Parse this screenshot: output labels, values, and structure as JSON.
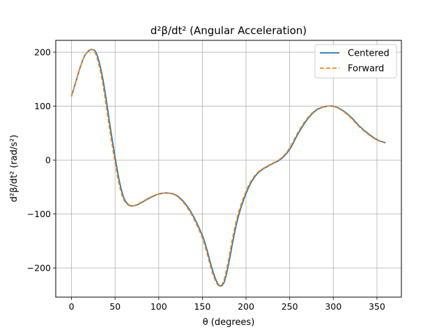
{
  "chart_data": {
    "type": "line",
    "title": "d²β/dt² (Angular Acceleration)",
    "xlabel": "θ (degrees)",
    "ylabel": "d²β/dt² (rad/s²)",
    "xlim": [
      -18,
      378
    ],
    "ylim": [
      -254,
      222
    ],
    "xticks": [
      0,
      50,
      100,
      150,
      200,
      250,
      300,
      350
    ],
    "yticks": [
      -200,
      -100,
      0,
      100,
      200
    ],
    "xtick_labels": [
      "0",
      "50",
      "100",
      "150",
      "200",
      "250",
      "300",
      "350"
    ],
    "ytick_labels": [
      "−200",
      "−100",
      "0",
      "100",
      "200"
    ],
    "grid": true,
    "legend_position": "top-right",
    "series": [
      {
        "name": "Centered",
        "color": "#1f77b4",
        "style": "solid",
        "x": [
          0,
          5,
          10,
          15,
          20,
          24,
          28,
          32,
          36,
          40,
          45,
          50,
          55,
          60,
          65,
          70,
          75,
          80,
          90,
          100,
          110,
          120,
          130,
          140,
          150,
          155,
          160,
          165,
          170,
          175,
          180,
          185,
          190,
          195,
          200,
          205,
          210,
          215,
          220,
          230,
          240,
          250,
          260,
          270,
          280,
          290,
          300,
          310,
          320,
          330,
          340,
          350,
          360
        ],
        "y": [
          118,
          145,
          172,
          193,
          203,
          205,
          200,
          180,
          150,
          110,
          55,
          5,
          -40,
          -70,
          -82,
          -85,
          -83,
          -79,
          -70,
          -63,
          -61,
          -65,
          -80,
          -105,
          -140,
          -165,
          -195,
          -220,
          -233,
          -226,
          -193,
          -150,
          -112,
          -84,
          -62,
          -44,
          -31,
          -22,
          -16,
          -7,
          2,
          20,
          50,
          75,
          92,
          99,
          100,
          93,
          80,
          63,
          49,
          38,
          32
        ]
      },
      {
        "name": "Forward",
        "color": "#ff7f0e",
        "style": "dashed",
        "x": [
          0,
          5,
          10,
          15,
          20,
          23,
          27,
          31,
          35,
          39,
          44,
          49,
          54,
          59,
          64,
          69,
          74,
          79,
          89,
          99,
          109,
          119,
          129,
          139,
          149,
          154,
          159,
          164,
          169,
          174,
          179,
          184,
          189,
          194,
          199,
          204,
          209,
          214,
          219,
          229,
          239,
          249,
          259,
          269,
          279,
          289,
          299,
          309,
          319,
          329,
          339,
          349,
          359
        ],
        "y": [
          118,
          145,
          172,
          193,
          203,
          205,
          200,
          180,
          150,
          110,
          55,
          5,
          -40,
          -70,
          -82,
          -85,
          -83,
          -79,
          -70,
          -63,
          -61,
          -65,
          -80,
          -105,
          -140,
          -165,
          -195,
          -220,
          -233,
          -226,
          -193,
          -150,
          -112,
          -84,
          -62,
          -44,
          -31,
          -22,
          -16,
          -7,
          2,
          20,
          50,
          75,
          92,
          99,
          100,
          93,
          80,
          63,
          49,
          38,
          32
        ]
      }
    ]
  }
}
